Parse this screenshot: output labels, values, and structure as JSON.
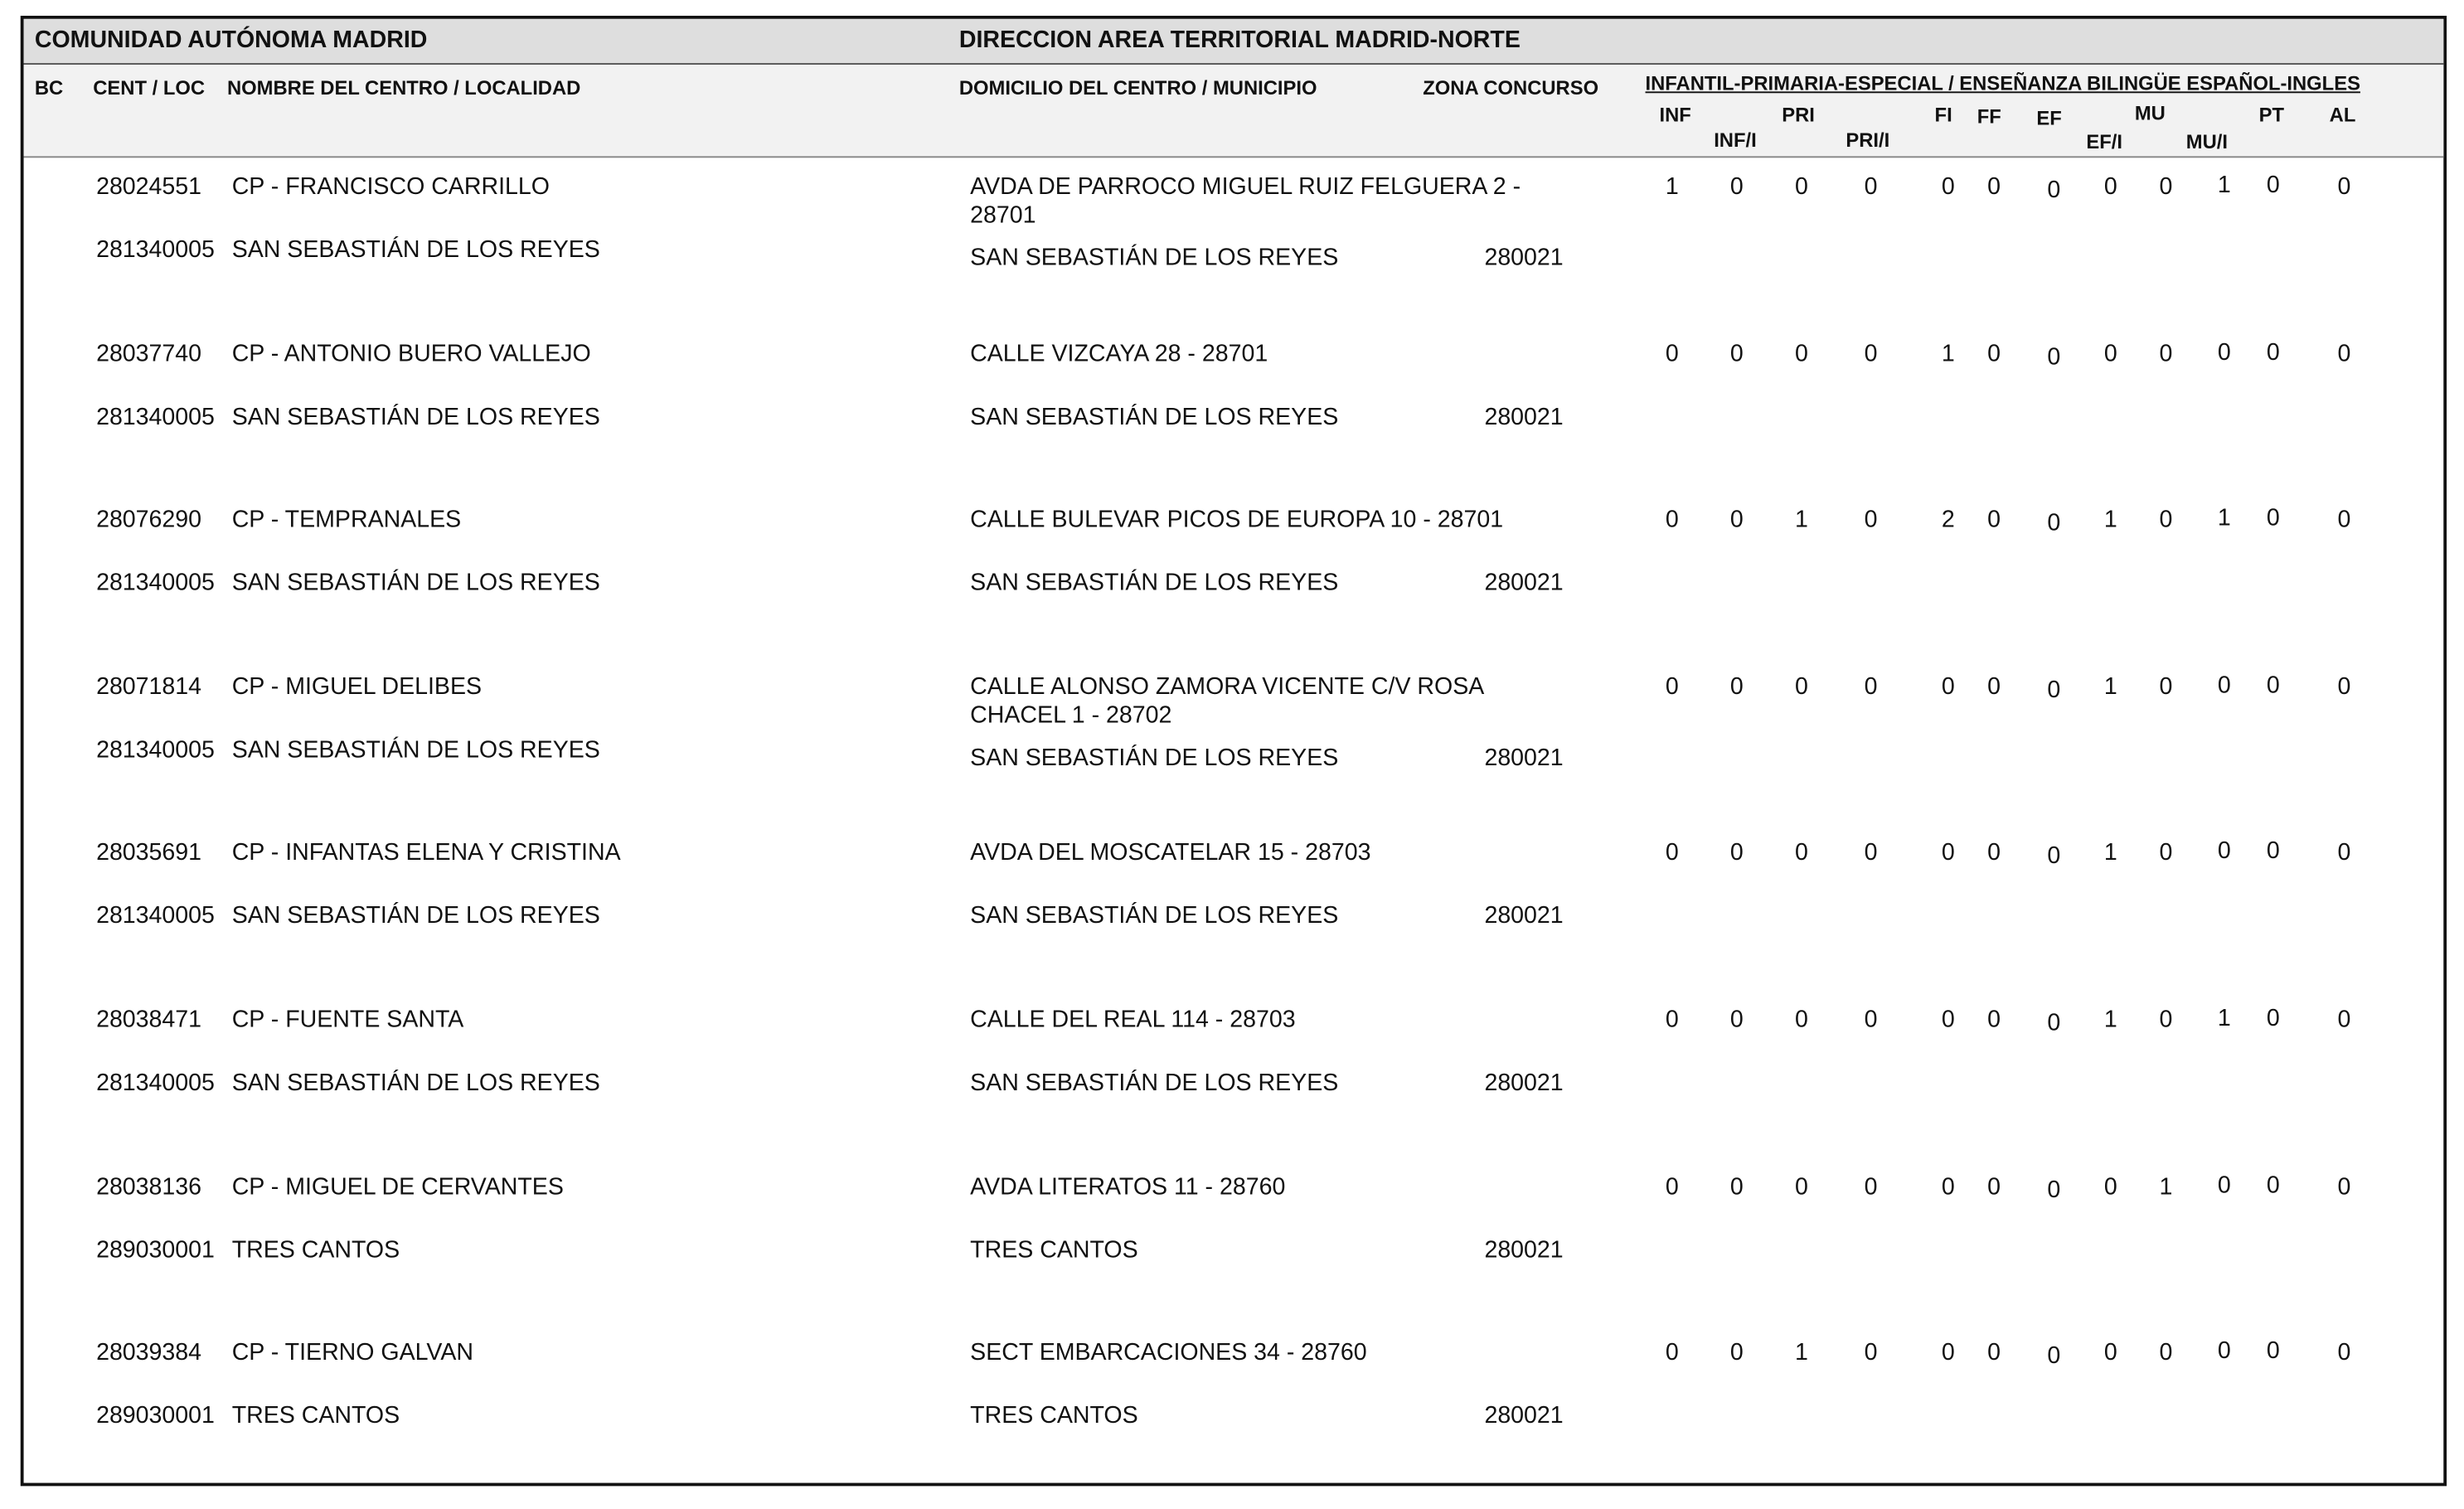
{
  "header": {
    "region": "COMUNIDAD AUTÓNOMA MADRID",
    "area": "DIRECCION AREA TERRITORIAL MADRID-NORTE"
  },
  "columns": {
    "bc": "BC",
    "code": "CENT / LOC",
    "name": "NOMBRE DEL CENTRO / LOCALIDAD",
    "address": "DOMICILIO DEL CENTRO / MUNICIPIO",
    "zone": "ZONA CONCURSO",
    "group": "INFANTIL-PRIMARIA-ESPECIAL / ENSEÑANZA BILINGÜE ESPAÑOL-INGLES",
    "sub": [
      "INF",
      "INF/I",
      "PRI",
      "PRI/I",
      "FI",
      "FF",
      "EF",
      "EF/I",
      "MU",
      "MU/I",
      "PT",
      "AL"
    ]
  },
  "rows": [
    {
      "code": "28024551",
      "name": "CP - FRANCISCO CARRILLO",
      "address": "AVDA DE PARROCO MIGUEL RUIZ FELGUERA 2 - 28701",
      "loc": "281340005",
      "locality": "SAN SEBASTIÁN DE LOS REYES",
      "municipality": "SAN SEBASTIÁN DE LOS REYES",
      "zone": "280021",
      "values": [
        1,
        0,
        0,
        0,
        0,
        0,
        0,
        0,
        0,
        1,
        0,
        0
      ]
    },
    {
      "code": "28037740",
      "name": "CP - ANTONIO BUERO VALLEJO",
      "address": "CALLE VIZCAYA 28 - 28701",
      "loc": "281340005",
      "locality": "SAN SEBASTIÁN DE LOS REYES",
      "municipality": "SAN SEBASTIÁN DE LOS REYES",
      "zone": "280021",
      "values": [
        0,
        0,
        0,
        0,
        1,
        0,
        0,
        0,
        0,
        0,
        0,
        0
      ]
    },
    {
      "code": "28076290",
      "name": "CP - TEMPRANALES",
      "address": "CALLE BULEVAR PICOS DE EUROPA 10 - 28701",
      "loc": "281340005",
      "locality": "SAN SEBASTIÁN DE LOS REYES",
      "municipality": "SAN SEBASTIÁN DE LOS REYES",
      "zone": "280021",
      "values": [
        0,
        0,
        1,
        0,
        2,
        0,
        0,
        1,
        0,
        1,
        0,
        0
      ]
    },
    {
      "code": "28071814",
      "name": "CP - MIGUEL DELIBES",
      "address": "CALLE ALONSO ZAMORA VICENTE C/V ROSA CHACEL 1 - 28702",
      "loc": "281340005",
      "locality": "SAN SEBASTIÁN DE LOS REYES",
      "municipality": "SAN SEBASTIÁN DE LOS REYES",
      "zone": "280021",
      "values": [
        0,
        0,
        0,
        0,
        0,
        0,
        0,
        1,
        0,
        0,
        0,
        0
      ]
    },
    {
      "code": "28035691",
      "name": "CP - INFANTAS ELENA Y CRISTINA",
      "address": "AVDA DEL MOSCATELAR 15 - 28703",
      "loc": "281340005",
      "locality": "SAN SEBASTIÁN DE LOS REYES",
      "municipality": "SAN SEBASTIÁN DE LOS REYES",
      "zone": "280021",
      "values": [
        0,
        0,
        0,
        0,
        0,
        0,
        0,
        1,
        0,
        0,
        0,
        0
      ]
    },
    {
      "code": "28038471",
      "name": "CP - FUENTE SANTA",
      "address": "CALLE DEL REAL 114 - 28703",
      "loc": "281340005",
      "locality": "SAN SEBASTIÁN DE LOS REYES",
      "municipality": "SAN SEBASTIÁN DE LOS REYES",
      "zone": "280021",
      "values": [
        0,
        0,
        0,
        0,
        0,
        0,
        0,
        1,
        0,
        1,
        0,
        0
      ]
    },
    {
      "code": "28038136",
      "name": "CP - MIGUEL DE CERVANTES",
      "address": "AVDA LITERATOS 11 - 28760",
      "loc": "289030001",
      "locality": "TRES CANTOS",
      "municipality": "TRES CANTOS",
      "zone": "280021",
      "values": [
        0,
        0,
        0,
        0,
        0,
        0,
        0,
        0,
        1,
        0,
        0,
        0
      ]
    },
    {
      "code": "28039384",
      "name": "CP - TIERNO GALVAN",
      "address": "SECT EMBARCACIONES 34 - 28760",
      "loc": "289030001",
      "locality": "TRES CANTOS",
      "municipality": "TRES CANTOS",
      "zone": "280021",
      "values": [
        0,
        0,
        1,
        0,
        0,
        0,
        0,
        0,
        0,
        0,
        0,
        0
      ]
    }
  ]
}
